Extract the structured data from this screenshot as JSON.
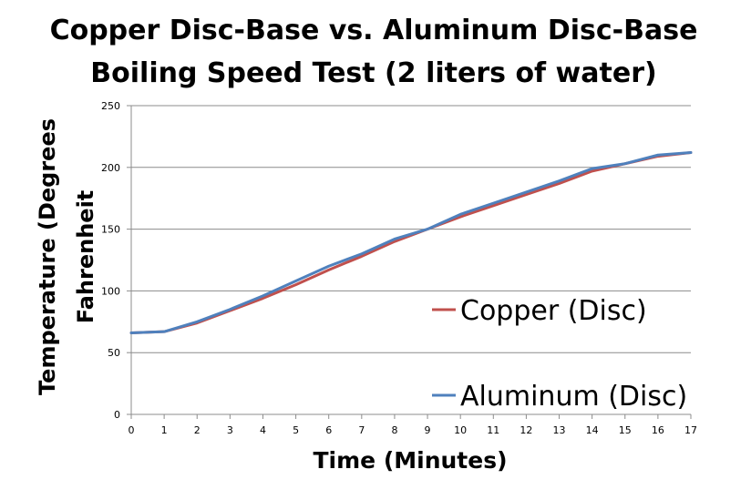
{
  "chart_data": {
    "type": "line",
    "title_line1": "Copper Disc-Base vs. Aluminum Disc-Base",
    "title_line2": "Boiling Speed Test (2 liters of water)",
    "xlabel": "Time (Minutes)",
    "ylabel_line1": "Temperature (Degrees",
    "ylabel_line2": "Fahrenheit",
    "x": [
      0,
      1,
      2,
      3,
      4,
      5,
      6,
      7,
      8,
      9,
      10,
      11,
      12,
      13,
      14,
      15,
      16,
      17
    ],
    "xlim": [
      0,
      17
    ],
    "ylim": [
      0,
      250
    ],
    "yticks": [
      0,
      50,
      100,
      150,
      200,
      250
    ],
    "grid": true,
    "legend_position": "right",
    "series": [
      {
        "name": "Copper (Disc)",
        "color": "#C0504D",
        "values": [
          66,
          67,
          74,
          84,
          94,
          105,
          117,
          128,
          140,
          150,
          160,
          169,
          178,
          187,
          197,
          203,
          209,
          212
        ]
      },
      {
        "name": "Aluminum (Disc)",
        "color": "#4F81BD",
        "values": [
          66,
          67,
          75,
          85,
          96,
          108,
          120,
          130,
          142,
          150,
          162,
          171,
          180,
          189,
          199,
          203,
          210,
          212
        ]
      }
    ]
  }
}
